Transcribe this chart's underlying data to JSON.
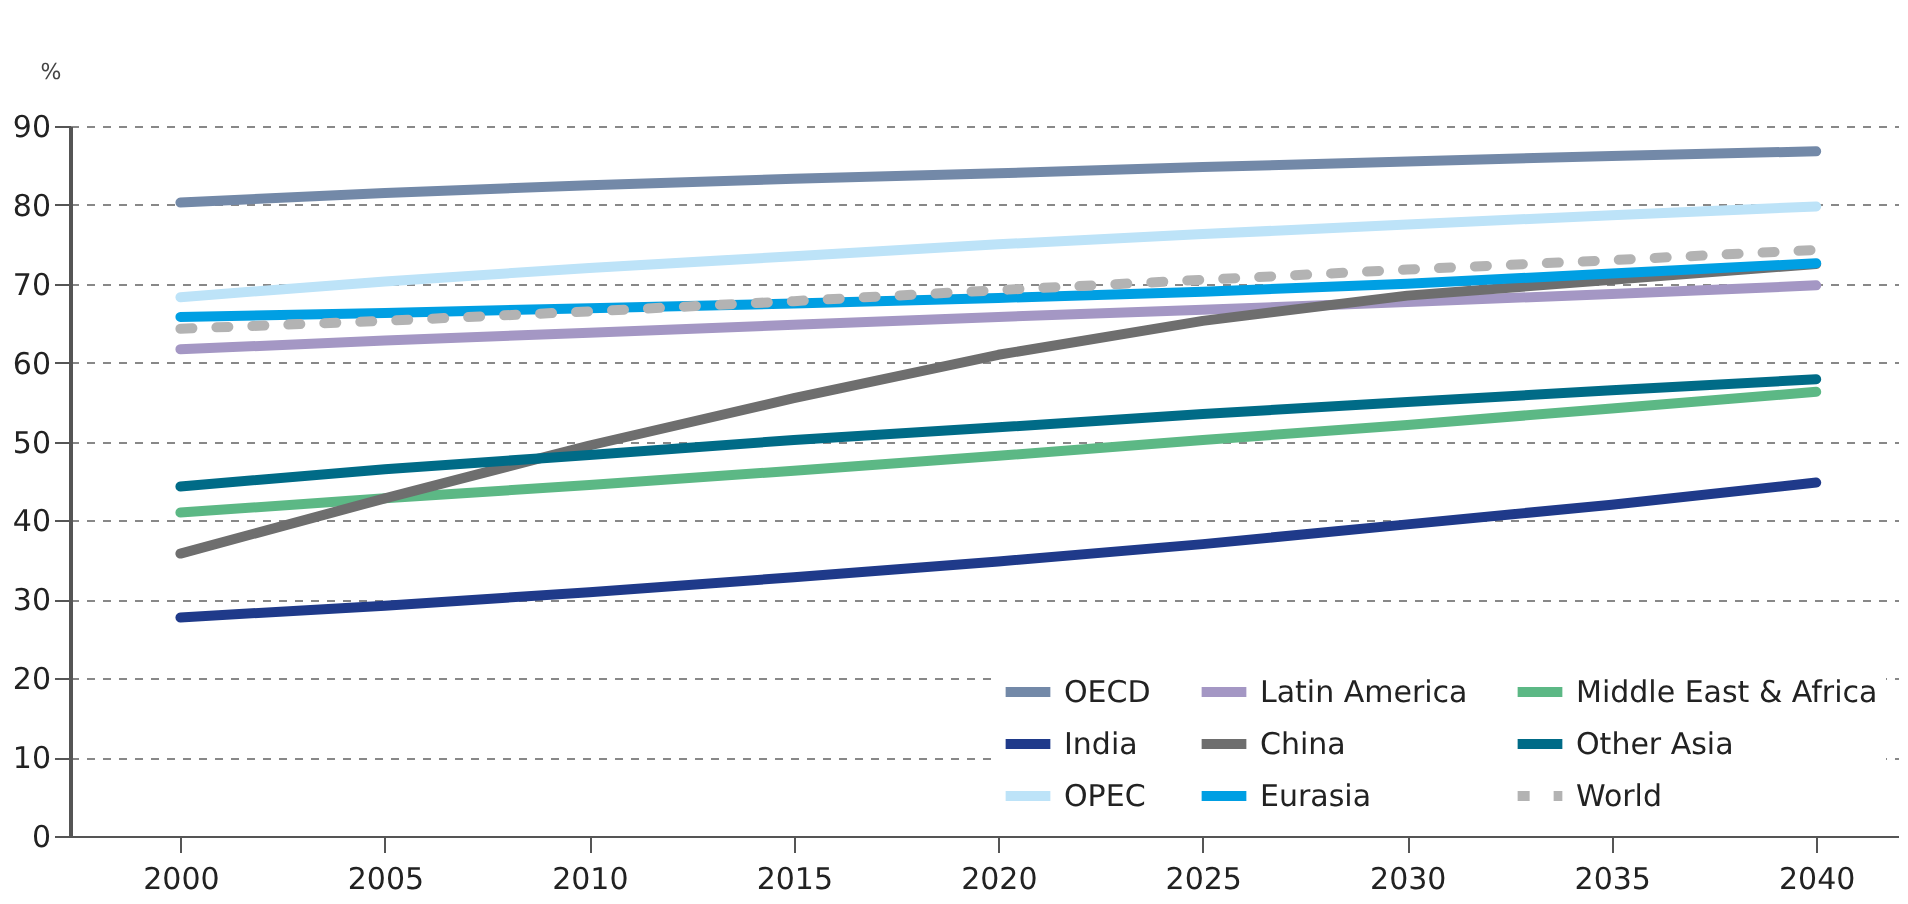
{
  "chart_data": {
    "type": "line",
    "ylabel": "%",
    "x": [
      2000,
      2005,
      2010,
      2015,
      2020,
      2025,
      2030,
      2035,
      2040
    ],
    "xlim": [
      1997.3,
      2042
    ],
    "xticks": [
      2000,
      2005,
      2010,
      2015,
      2020,
      2025,
      2030,
      2035,
      2040
    ],
    "ylim": [
      0,
      90
    ],
    "yticks": [
      0,
      10,
      20,
      30,
      40,
      50,
      60,
      70,
      80,
      90
    ],
    "grid": "y",
    "legend": "bottom right",
    "marker": "none",
    "series": [
      {
        "name": "OECD",
        "color": "#7389a8",
        "values": [
          80.3,
          81.5,
          82.5,
          83.3,
          84.0,
          84.8,
          85.5,
          86.2,
          86.8
        ]
      },
      {
        "name": "Latin America",
        "color": "#a497c4",
        "values": [
          61.7,
          62.8,
          63.8,
          64.8,
          65.8,
          66.7,
          67.7,
          68.7,
          69.8
        ]
      },
      {
        "name": "Middle East & Africa",
        "color": "#5cb885",
        "values": [
          41.0,
          42.8,
          44.5,
          46.3,
          48.2,
          50.2,
          52.1,
          54.2,
          56.3
        ]
      },
      {
        "name": "India",
        "color": "#1f3a8a",
        "values": [
          27.7,
          29.2,
          30.9,
          32.8,
          34.8,
          37.0,
          39.5,
          42.0,
          44.8
        ]
      },
      {
        "name": "China",
        "color": "#6e6e6e",
        "values": [
          35.8,
          42.8,
          49.5,
          55.5,
          61.0,
          65.3,
          68.5,
          70.5,
          72.5
        ]
      },
      {
        "name": "Other Asia",
        "color": "#006b87",
        "values": [
          44.3,
          46.5,
          48.3,
          50.2,
          51.8,
          53.5,
          55.0,
          56.5,
          57.9
        ]
      },
      {
        "name": "OPEC",
        "color": "#bde3f8",
        "values": [
          68.3,
          70.3,
          72.0,
          73.5,
          75.0,
          76.3,
          77.5,
          78.7,
          79.8
        ]
      },
      {
        "name": "Eurasia",
        "color": "#009fe3",
        "values": [
          65.8,
          66.3,
          66.9,
          67.5,
          68.2,
          69.0,
          70.0,
          71.3,
          72.6
        ]
      },
      {
        "name": "World",
        "color": "#b3b3b3",
        "line_style": "dashed",
        "values": [
          64.3,
          65.3,
          66.5,
          67.8,
          69.2,
          70.5,
          71.8,
          73.0,
          74.3
        ]
      }
    ]
  }
}
